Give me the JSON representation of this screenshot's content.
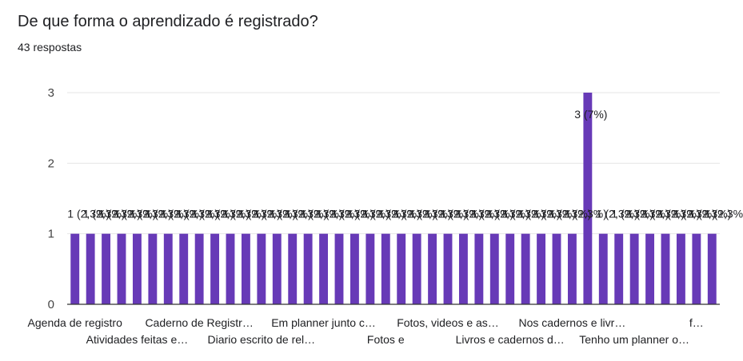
{
  "title": "De que forma o aprendizado é registrado?",
  "response_count": "43 respostas",
  "colors": {
    "bar": "#673ab7",
    "grid": "#e6e6e6",
    "axis": "#333333"
  },
  "chart_data": {
    "type": "bar",
    "title": "",
    "xlabel": "",
    "ylabel": "",
    "ylim": [
      0,
      3
    ],
    "yticks": [
      0,
      1,
      2,
      3
    ],
    "grid": true,
    "values": [
      1,
      1,
      1,
      1,
      1,
      1,
      1,
      1,
      1,
      1,
      1,
      1,
      1,
      1,
      1,
      1,
      1,
      1,
      1,
      1,
      1,
      1,
      1,
      1,
      1,
      1,
      1,
      1,
      1,
      1,
      1,
      1,
      1,
      3,
      1,
      1,
      1,
      1,
      1,
      1,
      1,
      1
    ],
    "data_labels": [
      "1 (2,3%)",
      "1 (2,3%)",
      "1 (2,3%)",
      "1 (2,3%)",
      "1 (2,3%)",
      "1 (2,3%)",
      "1 (2,3%)",
      "1 (2,3%)",
      "1 (2,3%)",
      "1 (2,3%)",
      "1 (2,3%)",
      "1 (2,3%)",
      "1 (2,3%)",
      "1 (2,3%)",
      "1 (2,3%)",
      "1 (2,3%)",
      "1 (2,3%)",
      "1 (2,3%)",
      "1 (2,3%)",
      "1 (2,3%)",
      "1 (2,3%)",
      "1 (2,3%)",
      "1 (2,3%)",
      "1 (2,3%)",
      "1 (2,3%)",
      "1 (2,3%)",
      "1 (2,3%)",
      "1 (2,3%)",
      "1 (2,3%)",
      "1 (2,3%)",
      "1 (2,3%)",
      "1 (2,3%)",
      "1 (2,3%)",
      "3 (7%)",
      "1 (2,3%)",
      "1 (2,3%)",
      "1 (2,3%)",
      "1 (2,3%)",
      "1 (2,3%)",
      "1 (2,3%)",
      "1 (2,3%)",
      "1 (2,3%)"
    ],
    "category_labels": [
      {
        "index": 0,
        "text": "Agenda de registro",
        "row": 0
      },
      {
        "index": 4,
        "text": "Atividades feitas e…",
        "row": 1
      },
      {
        "index": 8,
        "text": "Caderno de Registr…",
        "row": 0
      },
      {
        "index": 12,
        "text": "Diario escrito de rel…",
        "row": 1
      },
      {
        "index": 16,
        "text": "Em planner junto c…",
        "row": 0
      },
      {
        "index": 20,
        "text": "Fotos e",
        "row": 1
      },
      {
        "index": 24,
        "text": "Fotos, videos e as…",
        "row": 0
      },
      {
        "index": 28,
        "text": "Livros e cadernos d…",
        "row": 1
      },
      {
        "index": 32,
        "text": "Nos cadernos e livr…",
        "row": 0
      },
      {
        "index": 36,
        "text": "Tenho um planner o…",
        "row": 1
      },
      {
        "index": 40,
        "text": "f…",
        "row": 0
      }
    ]
  }
}
